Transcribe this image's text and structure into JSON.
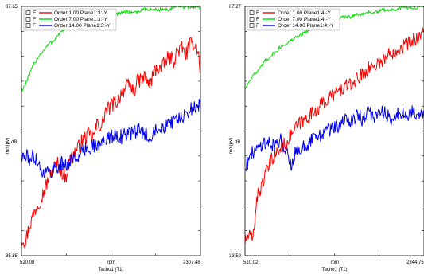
{
  "chart_data": [
    {
      "type": "line",
      "title": "",
      "ylabel": "m/s(pv)",
      "yunit": "dB",
      "xunit": "rpm",
      "xlabel": "Tacho1 (T1)",
      "xlim": [
        520.08,
        2307.48
      ],
      "ylim": [
        35.85,
        87.65
      ],
      "x_ticks": [
        "520.08",
        "2307.48"
      ],
      "y_ticks": [
        "87.65",
        "35.85"
      ],
      "legend_position": "top-left",
      "grid": false,
      "series": [
        {
          "name": "Order 1.00 Plane1:3:-Y",
          "legend_check": "F",
          "color": "#ff0000",
          "x": [
            520,
            560,
            600,
            640,
            680,
            720,
            760,
            800,
            840,
            880,
            920,
            960,
            1000,
            1040,
            1080,
            1120,
            1160,
            1200,
            1240,
            1280,
            1320,
            1360,
            1400,
            1440,
            1480,
            1520,
            1560,
            1600,
            1640,
            1680,
            1720,
            1760,
            1800,
            1840,
            1880,
            1920,
            1960,
            2000,
            2040,
            2080,
            2120,
            2160,
            2200,
            2240,
            2280,
            2307
          ],
          "y": [
            39.5,
            39.0,
            42.0,
            44.5,
            46.5,
            48.0,
            50.0,
            52.5,
            54.0,
            55.0,
            53.5,
            52.0,
            55.5,
            57.0,
            58.0,
            59.5,
            60.5,
            61.0,
            60.5,
            63.5,
            62.5,
            66.0,
            66.5,
            67.5,
            68.0,
            70.0,
            70.5,
            71.5,
            70.0,
            72.0,
            72.5,
            73.0,
            71.0,
            74.0,
            75.0,
            74.5,
            76.5,
            77.0,
            76.5,
            78.5,
            79.0,
            77.5,
            79.5,
            80.0,
            79.0,
            74.0
          ]
        },
        {
          "name": "Order 7.00 Plane1:3:-Y",
          "legend_check": "F",
          "color": "#00dd00",
          "x": [
            520,
            560,
            600,
            640,
            680,
            720,
            760,
            800,
            840,
            880,
            920,
            960,
            1000,
            1040,
            1080,
            1120,
            1160,
            1200,
            1240,
            1280,
            1320,
            1360,
            1400,
            1440,
            1480,
            1520,
            1560,
            1600,
            1640,
            1680,
            1720,
            1760,
            1800,
            1840,
            1880,
            1920,
            1960,
            2000,
            2040,
            2080,
            2120,
            2160,
            2200,
            2240,
            2280,
            2307
          ],
          "y": [
            70.0,
            71.5,
            73.5,
            75.5,
            77.0,
            78.0,
            79.0,
            80.0,
            80.5,
            81.5,
            82.5,
            83.0,
            83.0,
            83.5,
            84.0,
            84.5,
            84.5,
            85.0,
            85.0,
            85.5,
            85.5,
            86.0,
            86.0,
            86.0,
            86.0,
            86.5,
            86.5,
            86.5,
            86.5,
            86.5,
            87.0,
            87.0,
            87.0,
            87.0,
            87.0,
            87.0,
            87.0,
            87.0,
            87.5,
            87.5,
            87.5,
            87.5,
            87.5,
            87.5,
            87.5,
            87.5
          ]
        },
        {
          "name": "Order 14.00 Plane1:3:-Y",
          "legend_check": "F",
          "color": "#0000ee",
          "x": [
            520,
            560,
            600,
            640,
            680,
            720,
            760,
            800,
            840,
            880,
            920,
            960,
            1000,
            1040,
            1080,
            1120,
            1160,
            1200,
            1240,
            1280,
            1320,
            1360,
            1400,
            1440,
            1480,
            1520,
            1560,
            1600,
            1640,
            1680,
            1720,
            1760,
            1800,
            1840,
            1880,
            1920,
            1960,
            2000,
            2040,
            2080,
            2120,
            2160,
            2200,
            2240,
            2280,
            2307
          ],
          "y": [
            56.0,
            56.5,
            56.0,
            56.5,
            56.0,
            53.0,
            53.5,
            53.0,
            54.0,
            54.5,
            55.0,
            54.5,
            55.5,
            56.0,
            56.5,
            57.0,
            58.0,
            58.5,
            59.0,
            58.5,
            59.0,
            60.5,
            60.0,
            61.0,
            61.0,
            60.5,
            61.0,
            61.5,
            61.0,
            62.0,
            61.5,
            61.0,
            60.5,
            62.0,
            63.0,
            62.5,
            63.0,
            64.0,
            63.5,
            64.5,
            64.0,
            65.0,
            66.0,
            67.0,
            66.0,
            68.0
          ]
        }
      ]
    },
    {
      "type": "line",
      "title": "",
      "ylabel": "m/s(pv)",
      "yunit": "dB",
      "xunit": "rpm",
      "xlabel": "Tacho1 (T1)",
      "xlim": [
        510.02,
        2344.75
      ],
      "ylim": [
        33.59,
        87.27
      ],
      "x_ticks": [
        "510.02",
        "2344.75"
      ],
      "y_ticks": [
        "87.27",
        "33.59"
      ],
      "legend_position": "top-left",
      "grid": false,
      "series": [
        {
          "name": "Order 1.00 Plane1:4:-Y",
          "legend_check": "F",
          "color": "#ff0000",
          "x": [
            510,
            550,
            590,
            630,
            670,
            710,
            750,
            790,
            830,
            870,
            910,
            950,
            990,
            1030,
            1070,
            1110,
            1150,
            1190,
            1230,
            1270,
            1310,
            1350,
            1390,
            1430,
            1470,
            1510,
            1550,
            1590,
            1630,
            1670,
            1710,
            1750,
            1790,
            1830,
            1870,
            1910,
            1950,
            1990,
            2030,
            2070,
            2110,
            2150,
            2190,
            2230,
            2270,
            2310,
            2344
          ],
          "y": [
            36.5,
            38.0,
            37.0,
            46.0,
            48.0,
            50.5,
            52.5,
            54.5,
            55.5,
            56.5,
            57.5,
            58.5,
            60.0,
            61.0,
            62.0,
            62.5,
            63.5,
            64.0,
            65.0,
            65.5,
            66.5,
            67.0,
            68.0,
            68.5,
            69.0,
            69.5,
            70.5,
            70.0,
            71.0,
            72.0,
            72.5,
            73.5,
            74.0,
            74.5,
            75.0,
            75.5,
            76.0,
            77.0,
            77.5,
            78.0,
            78.5,
            79.0,
            79.5,
            80.0,
            80.5,
            81.0,
            82.0
          ]
        },
        {
          "name": "Order 7.00 Plane1:4:-Y",
          "legend_check": "F",
          "color": "#00dd00",
          "x": [
            510,
            550,
            590,
            630,
            670,
            710,
            750,
            790,
            830,
            870,
            910,
            950,
            990,
            1030,
            1070,
            1110,
            1150,
            1190,
            1230,
            1270,
            1310,
            1350,
            1390,
            1430,
            1470,
            1510,
            1550,
            1590,
            1630,
            1670,
            1710,
            1750,
            1790,
            1830,
            1870,
            1910,
            1950,
            1990,
            2030,
            2070,
            2110,
            2150,
            2190,
            2230,
            2270,
            2310,
            2344
          ],
          "y": [
            69.5,
            71.0,
            72.5,
            73.0,
            74.0,
            75.5,
            76.0,
            77.0,
            77.5,
            78.5,
            79.0,
            79.5,
            80.0,
            80.5,
            81.0,
            81.5,
            82.0,
            82.5,
            83.0,
            83.0,
            83.5,
            83.5,
            84.0,
            84.5,
            84.5,
            85.0,
            85.0,
            85.0,
            85.5,
            85.5,
            85.5,
            86.0,
            86.0,
            86.0,
            86.0,
            86.5,
            86.5,
            86.5,
            86.5,
            86.5,
            87.0,
            87.0,
            87.0,
            87.0,
            87.0,
            87.2,
            87.2
          ]
        },
        {
          "name": "Order 14.00 Plane1:4:-Y",
          "legend_check": "F",
          "color": "#0000ee",
          "x": [
            510,
            550,
            590,
            630,
            670,
            710,
            750,
            790,
            830,
            870,
            910,
            950,
            990,
            1030,
            1070,
            1110,
            1150,
            1190,
            1230,
            1270,
            1310,
            1350,
            1390,
            1430,
            1470,
            1510,
            1550,
            1590,
            1630,
            1670,
            1710,
            1750,
            1790,
            1830,
            1870,
            1910,
            1950,
            1990,
            2030,
            2070,
            2110,
            2150,
            2190,
            2230,
            2270,
            2310,
            2344
          ],
          "y": [
            53.0,
            54.0,
            56.0,
            56.5,
            57.5,
            58.0,
            58.0,
            57.5,
            57.5,
            58.5,
            57.5,
            55.5,
            53.0,
            57.0,
            56.0,
            57.5,
            56.0,
            58.5,
            59.0,
            59.5,
            60.0,
            60.5,
            61.0,
            61.5,
            61.0,
            62.0,
            63.0,
            62.5,
            63.5,
            64.0,
            63.0,
            64.0,
            64.5,
            63.5,
            64.0,
            65.0,
            64.5,
            63.5,
            62.5,
            64.0,
            63.5,
            64.5,
            64.0,
            65.0,
            64.5,
            63.5,
            65.0
          ]
        }
      ]
    }
  ]
}
